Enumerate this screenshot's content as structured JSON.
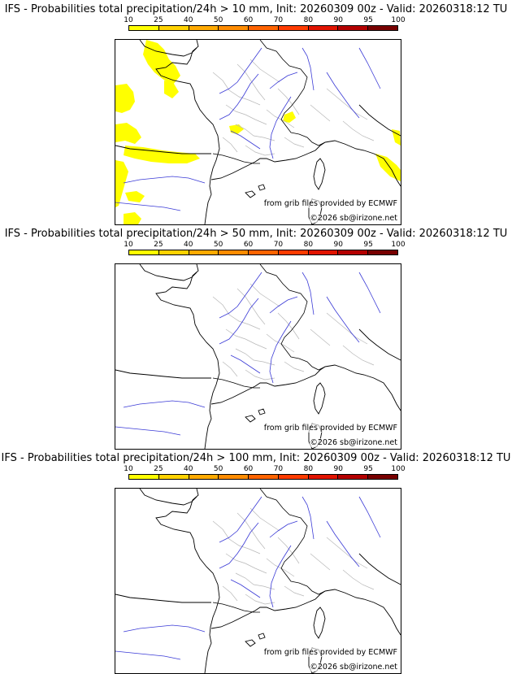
{
  "legend": {
    "ticks": [
      "10",
      "25",
      "40",
      "50",
      "60",
      "70",
      "80",
      "90",
      "95",
      "100"
    ],
    "colors": [
      "#ffff00",
      "#ffd200",
      "#ffaa00",
      "#ff8c00",
      "#ff6400",
      "#ff3c00",
      "#e11400",
      "#b40000",
      "#780000"
    ]
  },
  "panels": [
    {
      "title": "IFS - Probabilities total precipitation/24h > 10 mm, Init: 20260309 00z - Valid: 20260318:12 TU",
      "credit_source": "from grib files provided by ECMWF",
      "credit_copy": "©2026 sb@irizone.net",
      "has_precip": true
    },
    {
      "title": "IFS - Probabilities total precipitation/24h > 50 mm, Init: 20260309 00z - Valid: 20260318:12 TU",
      "credit_source": "from grib files provided by ECMWF",
      "credit_copy": "©2026 sb@irizone.net",
      "has_precip": false
    },
    {
      "title": "IFS - Probabilities total precipitation/24h > 100 mm, Init: 20260309 00z - Valid: 20260318:12 TU",
      "credit_source": "from grib files provided by ECMWF",
      "credit_copy": "©2026 sb@irizone.net",
      "has_precip": false
    }
  ]
}
